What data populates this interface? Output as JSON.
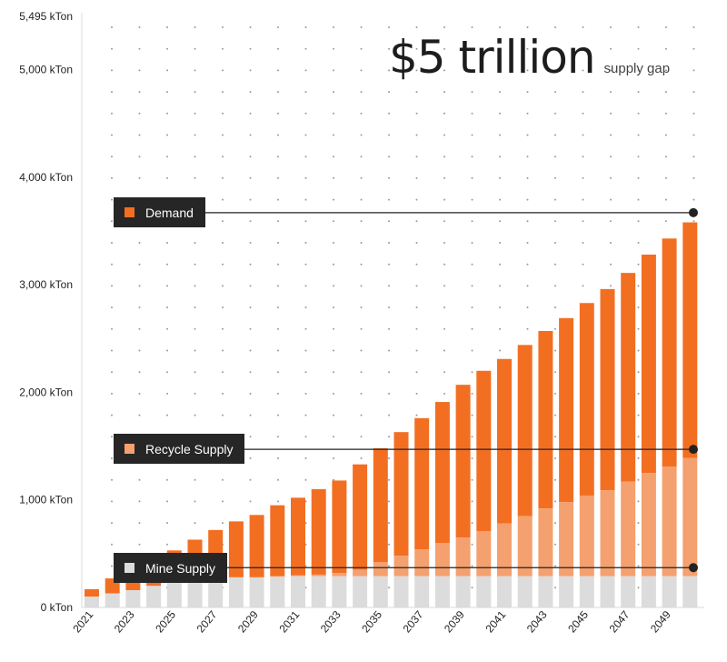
{
  "headline": {
    "value": "$5 trillion",
    "caption": "supply gap"
  },
  "chart_data": {
    "type": "bar",
    "stacked": true,
    "categories": [
      "2021",
      "2022",
      "2023",
      "2024",
      "2025",
      "2026",
      "2027",
      "2028",
      "2029",
      "2030",
      "2031",
      "2032",
      "2033",
      "2034",
      "2035",
      "2036",
      "2037",
      "2038",
      "2039",
      "2040",
      "2041",
      "2042",
      "2043",
      "2044",
      "2045",
      "2046",
      "2047",
      "2048",
      "2049",
      "2050"
    ],
    "x_tick_labels": [
      "2021",
      "2023",
      "2025",
      "2027",
      "2029",
      "2031",
      "2033",
      "2035",
      "2037",
      "2039",
      "2041",
      "2043",
      "2045",
      "2047",
      "2049"
    ],
    "y_ticks": [
      0,
      1000,
      2000,
      3000,
      4000,
      5000,
      5495
    ],
    "y_tick_labels": [
      "0 kTon",
      "1,000 kTon",
      "2,000 kTon",
      "3,000 kTon",
      "4,000 kTon",
      "5,000 kTon",
      "5,495 kTon"
    ],
    "ylim": [
      0,
      5495
    ],
    "grid": "dotted",
    "series": [
      {
        "name": "Mine Supply",
        "color": "#dcdcdc",
        "values": [
          100,
          130,
          160,
          200,
          230,
          240,
          250,
          280,
          280,
          285,
          290,
          290,
          290,
          290,
          290,
          290,
          290,
          290,
          290,
          290,
          290,
          290,
          290,
          290,
          290,
          290,
          290,
          290,
          290,
          290
        ]
      },
      {
        "name": "Recycle Supply",
        "color": "#f4a06f",
        "values": [
          0,
          0,
          0,
          0,
          0,
          0,
          0,
          0,
          0,
          5,
          10,
          15,
          30,
          60,
          130,
          190,
          250,
          310,
          360,
          420,
          490,
          560,
          630,
          690,
          750,
          800,
          880,
          960,
          1020,
          1100
        ]
      },
      {
        "name": "Demand",
        "color": "#f26f22",
        "values": [
          170,
          270,
          300,
          370,
          530,
          630,
          720,
          800,
          860,
          950,
          1020,
          1100,
          1180,
          1330,
          1480,
          1630,
          1760,
          1910,
          2070,
          2200,
          2310,
          2440,
          2570,
          2690,
          2830,
          2960,
          3110,
          3280,
          3430,
          3580
        ]
      }
    ],
    "legend": [
      {
        "label": "Demand",
        "color": "#f26f22",
        "value": 3670
      },
      {
        "label": "Recycle Supply",
        "color": "#f4a06f",
        "value": 1470
      },
      {
        "label": "Mine Supply",
        "color": "#dcdcdc",
        "value": 370
      }
    ]
  }
}
